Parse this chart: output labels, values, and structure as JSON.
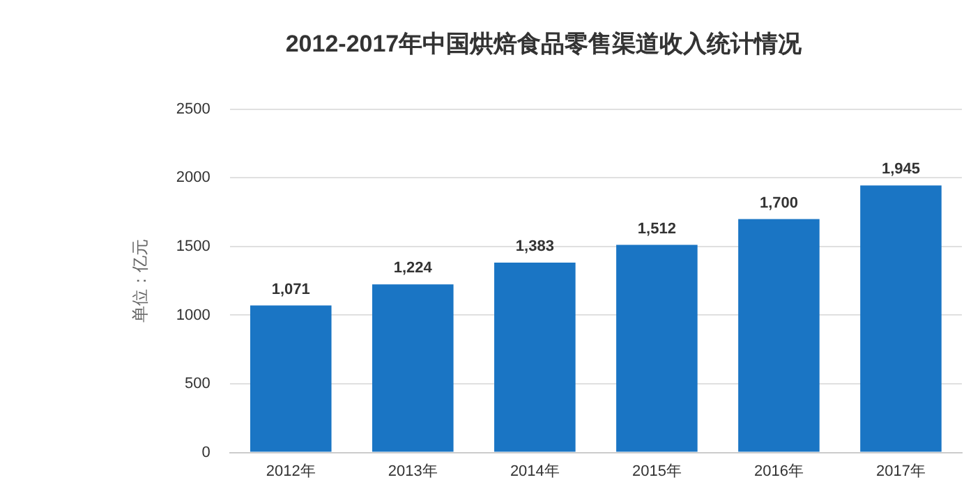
{
  "chart_data": {
    "type": "bar",
    "title": "2012-2017年中国烘焙食品零售渠道收入统计情况",
    "ylabel": "单位：亿元",
    "categories": [
      "2012年",
      "2013年",
      "2014年",
      "2015年",
      "2016年",
      "2017年"
    ],
    "values": [
      1071,
      1224,
      1383,
      1512,
      1700,
      1945
    ],
    "value_labels": [
      "1,071",
      "1,224",
      "1,383",
      "1,512",
      "1,700",
      "1,945"
    ],
    "color": "#1a75c4",
    "ylim": [
      0,
      2500
    ],
    "yticks": [
      0,
      500,
      1000,
      1500,
      2000,
      2500
    ],
    "grid": "y",
    "legend": false
  }
}
